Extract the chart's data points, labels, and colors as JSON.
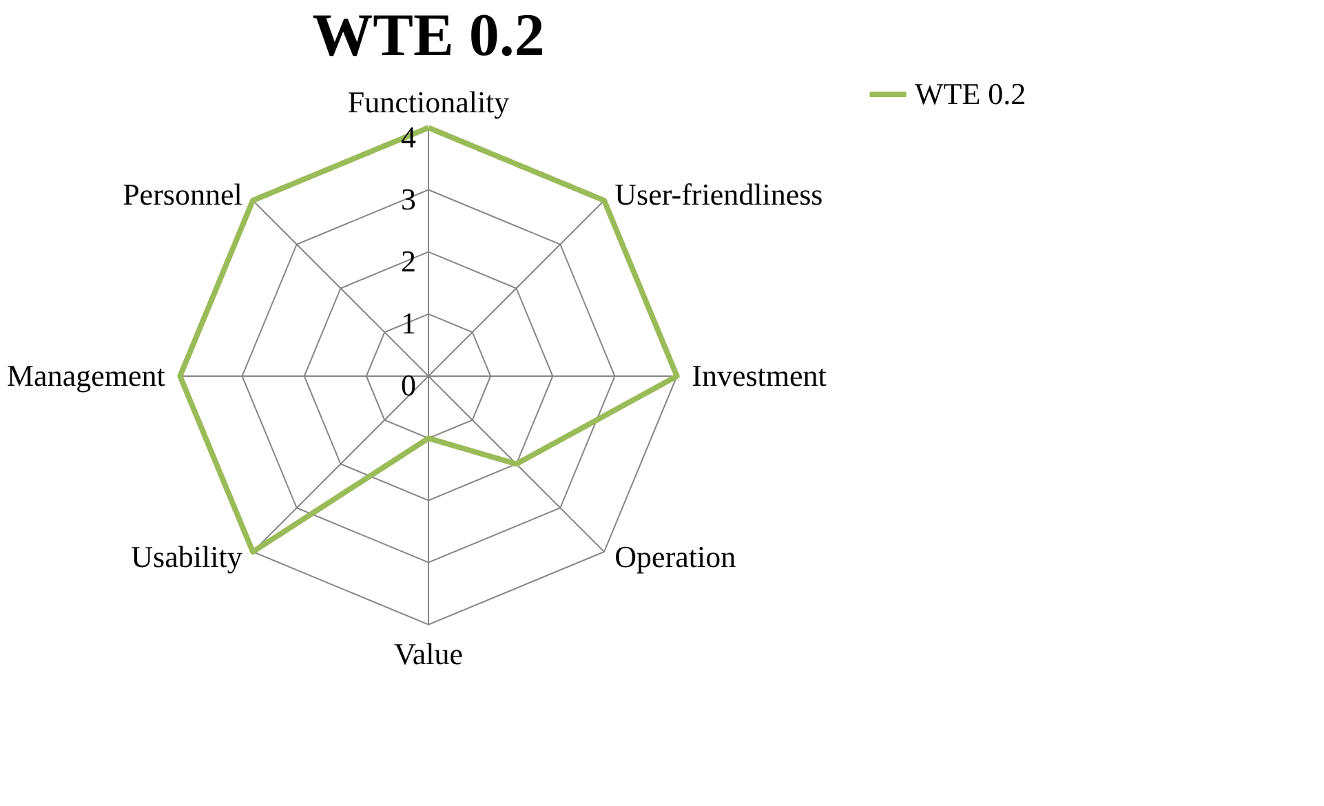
{
  "chart_data": {
    "type": "radar",
    "title": "WTE 0.2",
    "categories": [
      "Functionality",
      "User-friendliness",
      "Investment",
      "Operation",
      "Value",
      "Usability",
      "Management",
      "Personnel"
    ],
    "series": [
      {
        "name": "WTE 0.2",
        "color": "#9bbb59",
        "values": [
          4,
          4,
          4,
          2,
          1,
          4,
          4,
          4
        ]
      }
    ],
    "ylim": [
      0,
      4
    ],
    "yticks": [
      0,
      1,
      2,
      3,
      4
    ],
    "grid": true,
    "legend": "right",
    "marker": "none",
    "line_style": "solid"
  }
}
